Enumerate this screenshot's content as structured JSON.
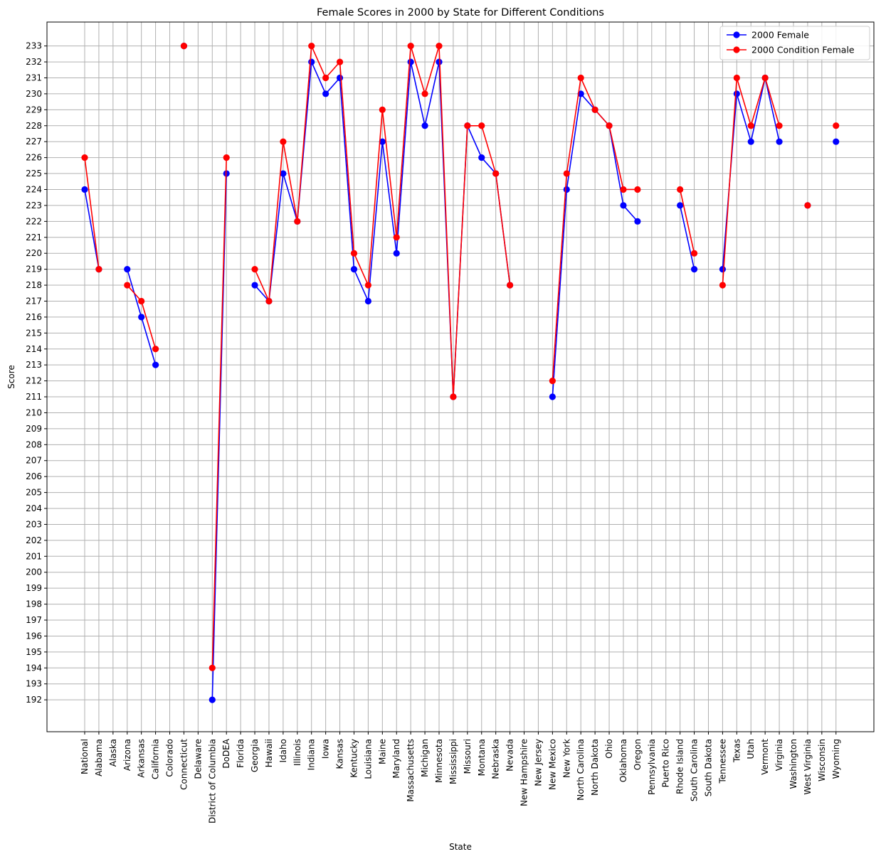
{
  "chart_data": {
    "type": "line",
    "title": "Female Scores in 2000 by State for Different Conditions",
    "xlabel": "State",
    "ylabel": "Score",
    "ylim": [
      190,
      234.5
    ],
    "yticks": [
      192,
      193,
      194,
      195,
      196,
      197,
      198,
      199,
      200,
      201,
      202,
      203,
      204,
      205,
      206,
      207,
      208,
      209,
      210,
      211,
      212,
      213,
      214,
      215,
      216,
      217,
      218,
      219,
      220,
      221,
      222,
      223,
      224,
      225,
      226,
      227,
      228,
      229,
      230,
      231,
      232,
      233
    ],
    "grid": true,
    "legend_position": "top-right",
    "categories": [
      "National",
      "Alabama",
      "Alaska",
      "Arizona",
      "Arkansas",
      "California",
      "Colorado",
      "Connecticut",
      "Delaware",
      "District of Columbia",
      "DoDEA",
      "Florida",
      "Georgia",
      "Hawaii",
      "Idaho",
      "Illinois",
      "Indiana",
      "Iowa",
      "Kansas",
      "Kentucky",
      "Louisiana",
      "Maine",
      "Maryland",
      "Massachusetts",
      "Michigan",
      "Minnesota",
      "Mississippi",
      "Missouri",
      "Montana",
      "Nebraska",
      "Nevada",
      "New Hampshire",
      "New Jersey",
      "New Mexico",
      "New York",
      "North Carolina",
      "North Dakota",
      "Ohio",
      "Oklahoma",
      "Oregon",
      "Pennsylvania",
      "Puerto Rico",
      "Rhode Island",
      "South Carolina",
      "South Dakota",
      "Tennessee",
      "Texas",
      "Utah",
      "Vermont",
      "Virginia",
      "Washington",
      "West Virginia",
      "Wisconsin",
      "Wyoming"
    ],
    "series": [
      {
        "name": "2000 Female",
        "color": "#0000ff",
        "values": [
          224,
          219,
          null,
          219,
          216,
          213,
          null,
          233,
          null,
          192,
          225,
          null,
          218,
          217,
          225,
          222,
          232,
          230,
          231,
          219,
          217,
          227,
          220,
          232,
          228,
          232,
          211,
          228,
          226,
          225,
          218,
          null,
          null,
          211,
          224,
          230,
          229,
          228,
          223,
          222,
          null,
          null,
          223,
          219,
          null,
          219,
          230,
          227,
          231,
          227,
          null,
          223,
          null,
          227
        ]
      },
      {
        "name": "2000 Condition Female",
        "color": "#ff0000",
        "values": [
          226,
          219,
          null,
          218,
          217,
          214,
          null,
          233,
          null,
          194,
          226,
          null,
          219,
          217,
          227,
          222,
          233,
          231,
          232,
          220,
          218,
          229,
          221,
          233,
          230,
          233,
          211,
          228,
          228,
          225,
          218,
          null,
          null,
          212,
          225,
          231,
          229,
          228,
          224,
          224,
          null,
          null,
          224,
          220,
          null,
          218,
          231,
          228,
          231,
          228,
          null,
          223,
          null,
          228
        ]
      }
    ]
  }
}
